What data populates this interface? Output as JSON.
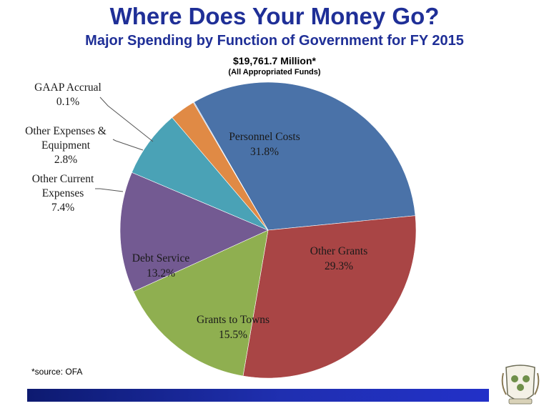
{
  "title": "Where Does Your Money Go?",
  "subtitle": "Major Spending by Function of Government for FY 2015",
  "total": "$19,761.7 Million*",
  "total_note": "(All Appropriated Funds)",
  "source": "*source: OFA",
  "chart_data": {
    "type": "pie",
    "slices": [
      {
        "name": "Personnel Costs",
        "value": 31.8,
        "label": "31.8%",
        "color": "#4a72a8",
        "label_lines": [
          "Personnel Costs",
          "31.8%"
        ]
      },
      {
        "name": "Other Grants",
        "value": 29.3,
        "label": "29.3%",
        "color": "#a94545",
        "label_lines": [
          "Other Grants",
          "29.3%"
        ]
      },
      {
        "name": "Grants to Towns",
        "value": 15.5,
        "label": "15.5%",
        "color": "#8faf50",
        "label_lines": [
          "Grants to Towns",
          "15.5%"
        ]
      },
      {
        "name": "Debt Service",
        "value": 13.2,
        "label": "13.2%",
        "color": "#735a92",
        "label_lines": [
          "Debt Service",
          "13.2%"
        ]
      },
      {
        "name": "Other Current Expenses",
        "value": 7.4,
        "label": "7.4%",
        "color": "#4aa2b6",
        "label_lines": [
          "Other Current",
          "Expenses",
          "7.4%"
        ]
      },
      {
        "name": "Other Expenses & Equipment",
        "value": 2.8,
        "label": "2.8%",
        "color": "#e08a45",
        "label_lines": [
          "Other Expenses &",
          "Equipment",
          "2.8%"
        ]
      },
      {
        "name": "GAAP Accrual",
        "value": 0.1,
        "label": "0.1%",
        "color": "#9db3d6",
        "label_lines": [
          "GAAP Accrual",
          "0.1%"
        ]
      }
    ]
  }
}
